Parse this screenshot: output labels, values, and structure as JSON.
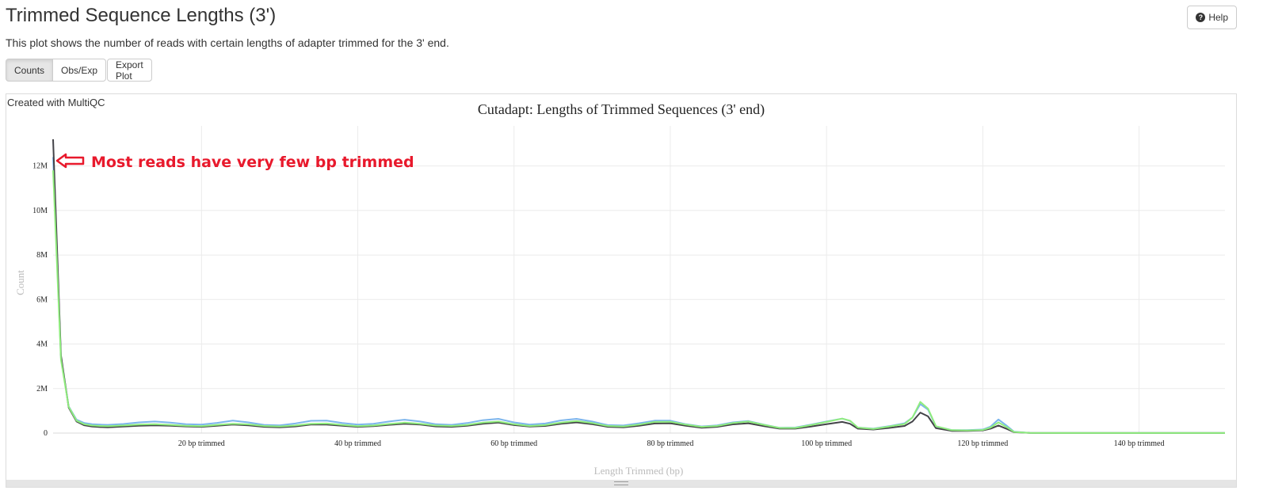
{
  "header": {
    "title": "Trimmed Sequence Lengths (3')",
    "description": "This plot shows the number of reads with certain lengths of adapter trimmed for the 3' end.",
    "help_label": "Help",
    "help_icon": "question-circle-icon"
  },
  "toolbar": {
    "counts_label": "Counts",
    "obsexp_label": "Obs/Exp",
    "export_label": "Export Plot"
  },
  "plot": {
    "credit": "Created with MultiQC"
  },
  "chart_data": {
    "type": "line",
    "title": "Cutadapt: Lengths of Trimmed Sequences (3' end)",
    "xlabel": "Length Trimmed (bp)",
    "ylabel": "Count",
    "xlim": [
      1,
      151
    ],
    "ylim": [
      0,
      13800000
    ],
    "x_ticks": [
      {
        "value": 20,
        "label": "20 bp trimmed"
      },
      {
        "value": 40,
        "label": "40 bp trimmed"
      },
      {
        "value": 60,
        "label": "60 bp trimmed"
      },
      {
        "value": 80,
        "label": "80 bp trimmed"
      },
      {
        "value": 100,
        "label": "100 bp trimmed"
      },
      {
        "value": 120,
        "label": "120 bp trimmed"
      },
      {
        "value": 140,
        "label": "140 bp trimmed"
      }
    ],
    "y_ticks": [
      {
        "value": 0,
        "label": "0"
      },
      {
        "value": 2000000,
        "label": "2M"
      },
      {
        "value": 4000000,
        "label": "4M"
      },
      {
        "value": 6000000,
        "label": "6M"
      },
      {
        "value": 8000000,
        "label": "8M"
      },
      {
        "value": 10000000,
        "label": "10M"
      },
      {
        "value": 12000000,
        "label": "12M"
      }
    ],
    "grid": true,
    "series": [
      {
        "color": "#7cb5ec",
        "points": [
          [
            1,
            12400000
          ],
          [
            2,
            3400000
          ],
          [
            3,
            1200000
          ],
          [
            4,
            600000
          ],
          [
            5,
            450000
          ],
          [
            6,
            400000
          ],
          [
            7,
            380000
          ],
          [
            8,
            370000
          ],
          [
            10,
            410000
          ],
          [
            12,
            480000
          ],
          [
            14,
            520000
          ],
          [
            16,
            470000
          ],
          [
            18,
            400000
          ],
          [
            20,
            380000
          ],
          [
            22,
            460000
          ],
          [
            24,
            560000
          ],
          [
            26,
            480000
          ],
          [
            28,
            370000
          ],
          [
            30,
            350000
          ],
          [
            32,
            430000
          ],
          [
            34,
            550000
          ],
          [
            36,
            560000
          ],
          [
            38,
            450000
          ],
          [
            40,
            380000
          ],
          [
            42,
            420000
          ],
          [
            44,
            520000
          ],
          [
            46,
            600000
          ],
          [
            48,
            520000
          ],
          [
            50,
            400000
          ],
          [
            52,
            370000
          ],
          [
            54,
            450000
          ],
          [
            56,
            580000
          ],
          [
            58,
            640000
          ],
          [
            60,
            480000
          ],
          [
            62,
            380000
          ],
          [
            64,
            430000
          ],
          [
            66,
            570000
          ],
          [
            68,
            640000
          ],
          [
            70,
            520000
          ],
          [
            72,
            360000
          ],
          [
            74,
            340000
          ],
          [
            76,
            440000
          ],
          [
            78,
            560000
          ],
          [
            80,
            560000
          ],
          [
            82,
            400000
          ],
          [
            84,
            300000
          ],
          [
            86,
            350000
          ],
          [
            88,
            480000
          ],
          [
            90,
            540000
          ],
          [
            92,
            380000
          ],
          [
            94,
            240000
          ],
          [
            96,
            250000
          ],
          [
            98,
            380000
          ],
          [
            100,
            520000
          ],
          [
            102,
            650000
          ],
          [
            103,
            550000
          ],
          [
            104,
            250000
          ],
          [
            106,
            200000
          ],
          [
            108,
            310000
          ],
          [
            110,
            440000
          ],
          [
            111,
            700000
          ],
          [
            112,
            1300000
          ],
          [
            113,
            1050000
          ],
          [
            114,
            300000
          ],
          [
            116,
            140000
          ],
          [
            118,
            130000
          ],
          [
            120,
            160000
          ],
          [
            121,
            290000
          ],
          [
            122,
            610000
          ],
          [
            123,
            350000
          ],
          [
            124,
            60000
          ],
          [
            126,
            10000
          ],
          [
            130,
            5000
          ],
          [
            140,
            3000
          ],
          [
            151,
            3000
          ]
        ]
      },
      {
        "color": "#434348",
        "points": [
          [
            1,
            13200000
          ],
          [
            2,
            3500000
          ],
          [
            3,
            1150000
          ],
          [
            4,
            520000
          ],
          [
            5,
            350000
          ],
          [
            6,
            290000
          ],
          [
            7,
            270000
          ],
          [
            8,
            260000
          ],
          [
            10,
            290000
          ],
          [
            12,
            330000
          ],
          [
            14,
            350000
          ],
          [
            16,
            330000
          ],
          [
            18,
            300000
          ],
          [
            20,
            280000
          ],
          [
            22,
            330000
          ],
          [
            24,
            380000
          ],
          [
            26,
            350000
          ],
          [
            28,
            280000
          ],
          [
            30,
            260000
          ],
          [
            32,
            300000
          ],
          [
            34,
            380000
          ],
          [
            36,
            380000
          ],
          [
            38,
            330000
          ],
          [
            40,
            280000
          ],
          [
            42,
            310000
          ],
          [
            44,
            370000
          ],
          [
            46,
            420000
          ],
          [
            48,
            380000
          ],
          [
            50,
            300000
          ],
          [
            52,
            280000
          ],
          [
            54,
            330000
          ],
          [
            56,
            420000
          ],
          [
            58,
            470000
          ],
          [
            60,
            360000
          ],
          [
            62,
            290000
          ],
          [
            64,
            320000
          ],
          [
            66,
            420000
          ],
          [
            68,
            480000
          ],
          [
            70,
            400000
          ],
          [
            72,
            280000
          ],
          [
            74,
            260000
          ],
          [
            76,
            330000
          ],
          [
            78,
            430000
          ],
          [
            80,
            440000
          ],
          [
            82,
            330000
          ],
          [
            84,
            240000
          ],
          [
            86,
            280000
          ],
          [
            88,
            390000
          ],
          [
            90,
            440000
          ],
          [
            92,
            310000
          ],
          [
            94,
            200000
          ],
          [
            96,
            200000
          ],
          [
            98,
            290000
          ],
          [
            100,
            400000
          ],
          [
            102,
            500000
          ],
          [
            103,
            420000
          ],
          [
            104,
            200000
          ],
          [
            106,
            160000
          ],
          [
            108,
            230000
          ],
          [
            110,
            320000
          ],
          [
            111,
            520000
          ],
          [
            112,
            920000
          ],
          [
            113,
            750000
          ],
          [
            114,
            220000
          ],
          [
            116,
            100000
          ],
          [
            118,
            95000
          ],
          [
            120,
            120000
          ],
          [
            121,
            200000
          ],
          [
            122,
            340000
          ],
          [
            123,
            200000
          ],
          [
            124,
            40000
          ],
          [
            126,
            8000
          ],
          [
            130,
            4000
          ],
          [
            140,
            2000
          ],
          [
            151,
            2000
          ]
        ]
      },
      {
        "color": "#90ed7d",
        "points": [
          [
            1,
            11800000
          ],
          [
            2,
            3300000
          ],
          [
            3,
            1180000
          ],
          [
            4,
            560000
          ],
          [
            5,
            400000
          ],
          [
            6,
            340000
          ],
          [
            7,
            320000
          ],
          [
            8,
            310000
          ],
          [
            10,
            340000
          ],
          [
            12,
            380000
          ],
          [
            14,
            400000
          ],
          [
            16,
            370000
          ],
          [
            18,
            330000
          ],
          [
            20,
            310000
          ],
          [
            22,
            370000
          ],
          [
            24,
            420000
          ],
          [
            26,
            390000
          ],
          [
            28,
            320000
          ],
          [
            30,
            300000
          ],
          [
            32,
            340000
          ],
          [
            34,
            420000
          ],
          [
            36,
            430000
          ],
          [
            38,
            370000
          ],
          [
            40,
            310000
          ],
          [
            42,
            340000
          ],
          [
            44,
            410000
          ],
          [
            46,
            470000
          ],
          [
            48,
            420000
          ],
          [
            50,
            340000
          ],
          [
            52,
            320000
          ],
          [
            54,
            370000
          ],
          [
            56,
            470000
          ],
          [
            58,
            520000
          ],
          [
            60,
            400000
          ],
          [
            62,
            320000
          ],
          [
            64,
            360000
          ],
          [
            66,
            470000
          ],
          [
            68,
            540000
          ],
          [
            70,
            450000
          ],
          [
            72,
            320000
          ],
          [
            74,
            300000
          ],
          [
            76,
            380000
          ],
          [
            78,
            500000
          ],
          [
            80,
            510000
          ],
          [
            82,
            380000
          ],
          [
            84,
            280000
          ],
          [
            86,
            320000
          ],
          [
            88,
            450000
          ],
          [
            90,
            520000
          ],
          [
            92,
            370000
          ],
          [
            94,
            230000
          ],
          [
            96,
            230000
          ],
          [
            98,
            360000
          ],
          [
            100,
            500000
          ],
          [
            102,
            650000
          ],
          [
            103,
            560000
          ],
          [
            104,
            250000
          ],
          [
            106,
            190000
          ],
          [
            108,
            290000
          ],
          [
            110,
            410000
          ],
          [
            111,
            700000
          ],
          [
            112,
            1400000
          ],
          [
            113,
            1100000
          ],
          [
            114,
            310000
          ],
          [
            116,
            130000
          ],
          [
            118,
            120000
          ],
          [
            120,
            140000
          ],
          [
            121,
            250000
          ],
          [
            122,
            480000
          ],
          [
            123,
            280000
          ],
          [
            124,
            50000
          ],
          [
            126,
            10000
          ],
          [
            130,
            5000
          ],
          [
            140,
            3000
          ],
          [
            151,
            3000
          ]
        ]
      }
    ],
    "annotation": {
      "text": "Most reads have very few bp trimmed",
      "color": "#e8192c"
    }
  }
}
